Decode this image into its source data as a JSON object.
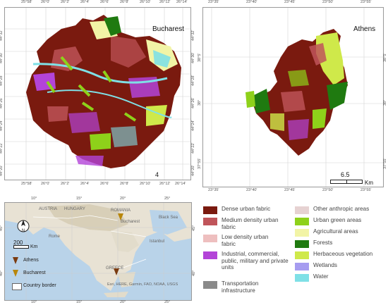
{
  "bucharest": {
    "title": "Bucharest",
    "top_ticks": [
      "25°58'",
      "26°0'",
      "26°2'",
      "26°4'",
      "26°6'",
      "26°8'",
      "26°10'",
      "26°12'",
      "26°14'"
    ],
    "bottom_ticks": [
      "25°58'",
      "26°0'",
      "26°2'",
      "26°4'",
      "26°6'",
      "26°8'",
      "26°10'",
      "26°12'",
      "26°14'"
    ],
    "left_ticks": [
      "44°32'",
      "44°30'",
      "44°28'",
      "44°26'",
      "44°24'",
      "44°22'",
      "44°20'"
    ],
    "right_ticks": [
      "44°32'",
      "44°30'",
      "44°28'",
      "44°26'",
      "44°24'",
      "44°22'",
      "44°20'"
    ],
    "scale_value": "4",
    "scale_unit": "Km"
  },
  "athens": {
    "title": "Athens",
    "top_ticks": [
      "23°35'",
      "23°40'",
      "23°45'",
      "23°50'",
      "23°55'"
    ],
    "bottom_ticks": [
      "23°35'",
      "23°40'",
      "23°45'",
      "23°50'",
      "23°55'"
    ],
    "left_ticks": [
      "38°5'",
      "38°",
      "37°55'"
    ],
    "right_ticks": [
      "38°5'",
      "38°",
      "37°55'"
    ],
    "scale_value": "6.5",
    "scale_unit": "Km"
  },
  "inset": {
    "top_ticks": [
      "10°",
      "15°",
      "20°",
      "25°"
    ],
    "bottom_ticks": [
      "10°",
      "15°",
      "20°",
      "25°"
    ],
    "left_ticks": [
      "45°",
      "40°"
    ],
    "right_ticks": [
      "45°",
      "40°"
    ],
    "country_labels": [
      "AUSTRIA",
      "HUNGARY",
      "ROMANIA",
      "GREECE"
    ],
    "sea_label": "Black Sea",
    "city_labels": [
      "Bucharest",
      "Rome",
      "Istanbul"
    ],
    "attribution": "Esri, HERE, Garmin, FAO, NOAA, USGS",
    "scale_value": "200",
    "scale_unit": "Km",
    "legend": [
      {
        "label": "Athens",
        "color": "#7a3b10"
      },
      {
        "label": "Bucharest",
        "color": "#b8860b"
      },
      {
        "label": "Country border",
        "color": "#ffffff"
      }
    ]
  },
  "legend": {
    "items": [
      {
        "label": "Dense urban fabric",
        "color": "#7a1a0f"
      },
      {
        "label": "Medium density urban fabric",
        "color": "#c0555a"
      },
      {
        "label": "Low density urban fabric",
        "color": "#eebfbf"
      },
      {
        "label": "Industrial, commercial, public, military and private units",
        "color": "#b344d8"
      },
      {
        "label": "Transportation infrastructure",
        "color": "#8a8a8a"
      },
      {
        "label": "Other anthropic areas",
        "color": "#e6d2d2"
      },
      {
        "label": "Urban green areas",
        "color": "#8ed11a"
      },
      {
        "label": "Agricultural areas",
        "color": "#f2f4a6"
      },
      {
        "label": "Forests",
        "color": "#1f7a10"
      },
      {
        "label": "Herbaceous vegetation",
        "color": "#cfe94a"
      },
      {
        "label": "Wetlands",
        "color": "#a69cf0"
      },
      {
        "label": "Water",
        "color": "#7fe0e6"
      }
    ]
  }
}
